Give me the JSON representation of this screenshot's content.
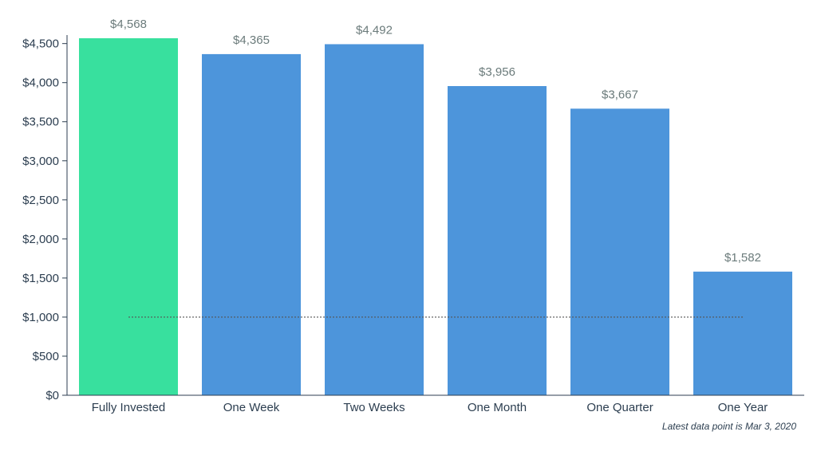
{
  "chart_data": {
    "type": "bar",
    "categories": [
      "Fully Invested",
      "One Week",
      "Two Weeks",
      "One Month",
      "One Quarter",
      "One Year"
    ],
    "values": [
      4568,
      4365,
      4492,
      3956,
      3667,
      1582
    ],
    "data_labels": [
      "$4,568",
      "$4,365",
      "$4,492",
      "$3,956",
      "$3,667",
      "$1,582"
    ],
    "bar_colors": [
      "#38e09e",
      "#4d95db",
      "#4d95db",
      "#4d95db",
      "#4d95db",
      "#4d95db"
    ],
    "ylim": [
      0,
      4568
    ],
    "yticks": [
      0,
      500,
      1000,
      1500,
      2000,
      2500,
      3000,
      3500,
      4000,
      4500
    ],
    "ytick_labels": [
      "$0",
      "$500",
      "$1,000",
      "$1,500",
      "$2,000",
      "$2,500",
      "$3,000",
      "$3,500",
      "$4,000",
      "$4,500"
    ],
    "reference_line": {
      "value": 1000,
      "style": "dotted",
      "color": "#555555"
    },
    "grid": false,
    "legend": "none",
    "title": "",
    "xlabel": "",
    "ylabel": ""
  },
  "footnote": "Latest data point is Mar 3, 2020"
}
